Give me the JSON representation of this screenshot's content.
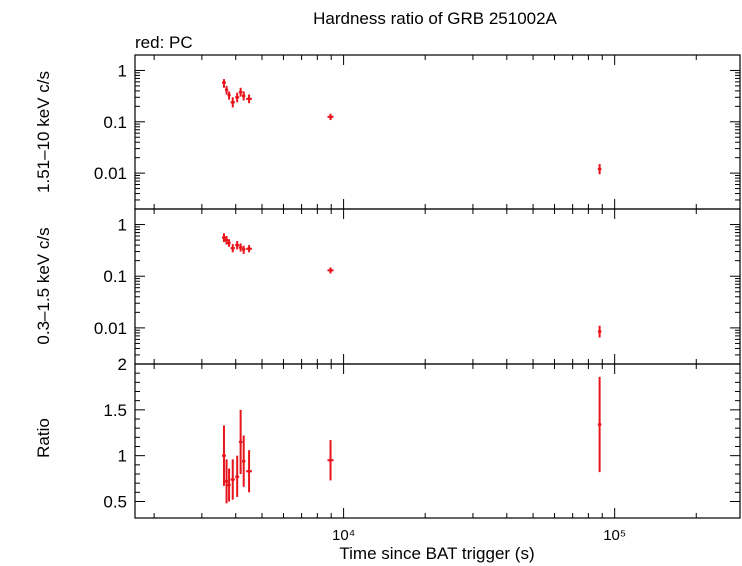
{
  "title": "Hardness ratio of GRB 251002A",
  "legend_note": "red: PC",
  "xlabel": "Time since BAT trigger (s)",
  "series_color": "#e8141c",
  "chart_data": [
    {
      "type": "scatter",
      "panel": "top",
      "ylabel": "1.51–10 keV c/s",
      "xscale": "log",
      "yscale": "log",
      "xlim": [
        1700,
        290000
      ],
      "ylim": [
        0.002,
        2
      ],
      "xticks": [
        {
          "value": 10000,
          "label": "10⁴"
        },
        {
          "value": 100000,
          "label": "10⁵"
        }
      ],
      "yticks": [
        {
          "value": 1,
          "label": "1"
        },
        {
          "value": 0.1,
          "label": "0.1"
        },
        {
          "value": 0.01,
          "label": "0.01"
        }
      ],
      "points": [
        {
          "x": 3620,
          "y": 0.58,
          "xerr": [
            60,
            60
          ],
          "y_lo": 0.46,
          "y_hi": 0.68
        },
        {
          "x": 3700,
          "y": 0.42,
          "xerr": [
            50,
            50
          ],
          "y_lo": 0.34,
          "y_hi": 0.5
        },
        {
          "x": 3780,
          "y": 0.33,
          "xerr": [
            50,
            50
          ],
          "y_lo": 0.27,
          "y_hi": 0.39
        },
        {
          "x": 3900,
          "y": 0.24,
          "xerr": [
            70,
            70
          ],
          "y_lo": 0.19,
          "y_hi": 0.3
        },
        {
          "x": 4050,
          "y": 0.3,
          "xerr": [
            70,
            70
          ],
          "y_lo": 0.24,
          "y_hi": 0.37
        },
        {
          "x": 4170,
          "y": 0.38,
          "xerr": [
            60,
            60
          ],
          "y_lo": 0.31,
          "y_hi": 0.46
        },
        {
          "x": 4280,
          "y": 0.32,
          "xerr": [
            60,
            60
          ],
          "y_lo": 0.26,
          "y_hi": 0.39
        },
        {
          "x": 4480,
          "y": 0.28,
          "xerr": [
            110,
            110
          ],
          "y_lo": 0.23,
          "y_hi": 0.34
        },
        {
          "x": 8950,
          "y": 0.125,
          "xerr": [
            230,
            230
          ],
          "y_lo": 0.108,
          "y_hi": 0.143
        },
        {
          "x": 88000,
          "y": 0.012,
          "xerr": [
            1300,
            1300
          ],
          "y_lo": 0.0095,
          "y_hi": 0.015
        }
      ]
    },
    {
      "type": "scatter",
      "panel": "middle",
      "ylabel": "0.3–1.5 keV c/s",
      "xscale": "log",
      "yscale": "log",
      "xlim": [
        1700,
        290000
      ],
      "ylim": [
        0.002,
        2
      ],
      "xticks": [
        {
          "value": 10000,
          "label": "10⁴"
        },
        {
          "value": 100000,
          "label": "10⁵"
        }
      ],
      "yticks": [
        {
          "value": 1,
          "label": "1"
        },
        {
          "value": 0.1,
          "label": "0.1"
        },
        {
          "value": 0.01,
          "label": "0.01"
        }
      ],
      "points": [
        {
          "x": 3620,
          "y": 0.56,
          "xerr": [
            60,
            60
          ],
          "y_lo": 0.46,
          "y_hi": 0.68
        },
        {
          "x": 3700,
          "y": 0.5,
          "xerr": [
            50,
            50
          ],
          "y_lo": 0.41,
          "y_hi": 0.6
        },
        {
          "x": 3780,
          "y": 0.44,
          "xerr": [
            50,
            50
          ],
          "y_lo": 0.37,
          "y_hi": 0.52
        },
        {
          "x": 3900,
          "y": 0.35,
          "xerr": [
            70,
            70
          ],
          "y_lo": 0.29,
          "y_hi": 0.42
        },
        {
          "x": 4050,
          "y": 0.4,
          "xerr": [
            70,
            70
          ],
          "y_lo": 0.33,
          "y_hi": 0.48
        },
        {
          "x": 4170,
          "y": 0.36,
          "xerr": [
            60,
            60
          ],
          "y_lo": 0.3,
          "y_hi": 0.43
        },
        {
          "x": 4280,
          "y": 0.33,
          "xerr": [
            60,
            60
          ],
          "y_lo": 0.27,
          "y_hi": 0.39
        },
        {
          "x": 4480,
          "y": 0.34,
          "xerr": [
            110,
            110
          ],
          "y_lo": 0.29,
          "y_hi": 0.4
        },
        {
          "x": 8950,
          "y": 0.13,
          "xerr": [
            230,
            230
          ],
          "y_lo": 0.113,
          "y_hi": 0.148
        },
        {
          "x": 88000,
          "y": 0.0085,
          "xerr": [
            1300,
            1300
          ],
          "y_lo": 0.0065,
          "y_hi": 0.011
        }
      ]
    },
    {
      "type": "scatter",
      "panel": "bottom",
      "ylabel": "Ratio",
      "xscale": "log",
      "yscale": "linear",
      "xlim": [
        1700,
        290000
      ],
      "ylim": [
        0.32,
        2.0
      ],
      "xticks": [
        {
          "value": 10000,
          "label": "10⁴"
        },
        {
          "value": 100000,
          "label": "10⁵"
        }
      ],
      "yticks": [
        {
          "value": 2,
          "label": "2"
        },
        {
          "value": 1.5,
          "label": "1.5"
        },
        {
          "value": 1,
          "label": "1"
        },
        {
          "value": 0.5,
          "label": "0.5"
        }
      ],
      "points": [
        {
          "x": 3620,
          "y": 1.0,
          "xerr": [
            60,
            60
          ],
          "y_lo": 0.67,
          "y_hi": 1.33
        },
        {
          "x": 3700,
          "y": 0.72,
          "xerr": [
            50,
            50
          ],
          "y_lo": 0.48,
          "y_hi": 0.96
        },
        {
          "x": 3780,
          "y": 0.68,
          "xerr": [
            50,
            50
          ],
          "y_lo": 0.5,
          "y_hi": 0.86
        },
        {
          "x": 3900,
          "y": 0.74,
          "xerr": [
            70,
            70
          ],
          "y_lo": 0.52,
          "y_hi": 0.96
        },
        {
          "x": 4050,
          "y": 0.77,
          "xerr": [
            70,
            70
          ],
          "y_lo": 0.55,
          "y_hi": 1.0
        },
        {
          "x": 4170,
          "y": 1.15,
          "xerr": [
            60,
            60
          ],
          "y_lo": 0.8,
          "y_hi": 1.5
        },
        {
          "x": 4280,
          "y": 0.94,
          "xerr": [
            60,
            60
          ],
          "y_lo": 0.66,
          "y_hi": 1.22
        },
        {
          "x": 4480,
          "y": 0.83,
          "xerr": [
            110,
            110
          ],
          "y_lo": 0.6,
          "y_hi": 1.06
        },
        {
          "x": 8950,
          "y": 0.95,
          "xerr": [
            230,
            230
          ],
          "y_lo": 0.73,
          "y_hi": 1.17
        },
        {
          "x": 88000,
          "y": 1.34,
          "xerr": [
            1300,
            1300
          ],
          "y_lo": 0.82,
          "y_hi": 1.86
        }
      ]
    }
  ]
}
